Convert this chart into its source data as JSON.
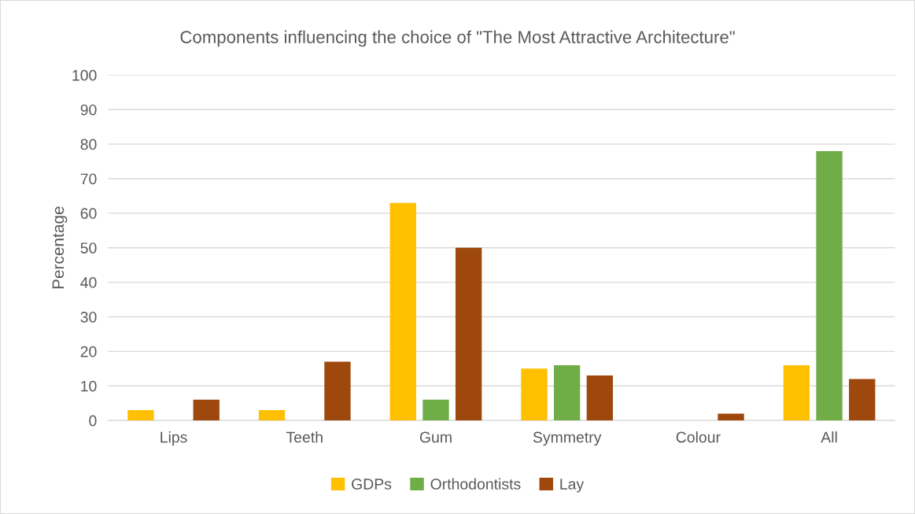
{
  "chart_data": {
    "type": "bar",
    "title": "Components influencing the choice of \"The Most Attractive Architecture\"",
    "ylabel": "Percentage",
    "categories": [
      "Lips",
      "Teeth",
      "Gum",
      "Symmetry",
      "Colour",
      "All"
    ],
    "series": [
      {
        "name": "GDPs",
        "color": "#ffc000",
        "values": [
          3,
          3,
          63,
          15,
          0,
          16
        ]
      },
      {
        "name": "Orthodontists",
        "color": "#70ad47",
        "values": [
          0,
          0,
          6,
          16,
          0,
          78
        ]
      },
      {
        "name": "Lay",
        "color": "#9e480e",
        "values": [
          6,
          17,
          50,
          13,
          2,
          12
        ]
      }
    ],
    "ylim": [
      0,
      100
    ],
    "yticks": [
      0,
      10,
      20,
      30,
      40,
      50,
      60,
      70,
      80,
      90,
      100
    ],
    "grid": "y",
    "legend": "bottom"
  }
}
